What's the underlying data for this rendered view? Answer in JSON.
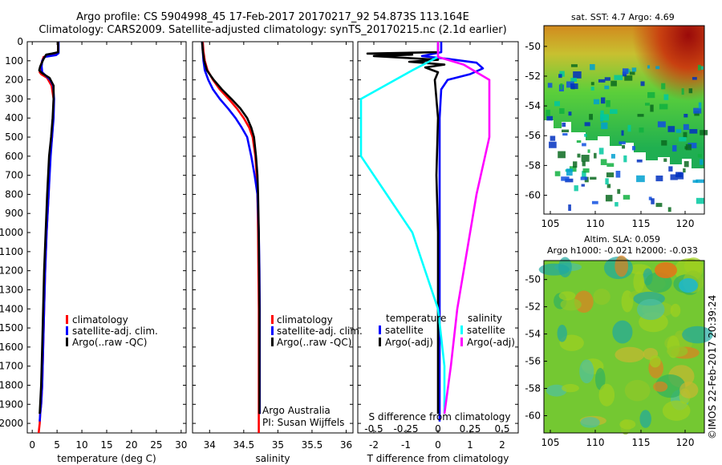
{
  "header": {
    "line1": "Argo profile: CS 5904998_45 17-Feb-2017 20170217_92 54.873S 113.164E",
    "line2": "Climatology: CARS2009. Satellite-adjusted climatology: synTS_20170215.nc (2.1d earlier)"
  },
  "colors": {
    "clim": "#ff0000",
    "sat": "#0000ff",
    "argo": "#000000",
    "sal_sat": "#00ffff",
    "sal_argo": "#ff00ff"
  },
  "chart_data": [
    {
      "type": "line",
      "id": "temperature",
      "xlabel": "temperature (deg C)",
      "xlim": [
        -1,
        31
      ],
      "ylim": [
        0,
        2050
      ],
      "xticks": [
        0,
        5,
        10,
        15,
        20,
        25,
        30
      ],
      "yticks": [
        0,
        100,
        200,
        300,
        400,
        500,
        600,
        700,
        800,
        900,
        1000,
        1100,
        1200,
        1300,
        1400,
        1500,
        1600,
        1700,
        1800,
        1900,
        2000
      ],
      "legend": [
        "climatology",
        "satellite-adj. clim.",
        "Argo(..raw -QC)"
      ],
      "series": [
        {
          "name": "climatology",
          "color": "#ff0000",
          "x": [
            5.2,
            5.2,
            5.0,
            4.0,
            2.3,
            2.0,
            1.6,
            1.5,
            1.8,
            3.0,
            3.9,
            4.3,
            4.2,
            4.0,
            3.6,
            3.3,
            2.9,
            2.6,
            2.4,
            2.2,
            2.0,
            1.8,
            1.6,
            1.5,
            1.3
          ],
          "y": [
            0,
            50,
            65,
            72,
            80,
            100,
            140,
            160,
            170,
            190,
            230,
            300,
            400,
            500,
            600,
            800,
            1000,
            1200,
            1400,
            1600,
            1800,
            1900,
            1950,
            2000,
            2050
          ]
        },
        {
          "name": "satellite-adj. clim.",
          "color": "#0000ff",
          "x": [
            5.3,
            5.3,
            4.8,
            2.5,
            2.0,
            1.9,
            2.0,
            2.8,
            3.6,
            4.2,
            4.4,
            4.3,
            4.0,
            3.7,
            3.3,
            2.9,
            2.6,
            2.4,
            2.2,
            2.0,
            1.8,
            1.6,
            1.5
          ],
          "y": [
            0,
            60,
            70,
            80,
            100,
            130,
            160,
            180,
            200,
            230,
            300,
            400,
            500,
            600,
            800,
            1000,
            1200,
            1400,
            1600,
            1800,
            1900,
            1950,
            1990
          ]
        },
        {
          "name": "Argo(..raw -QC)",
          "color": "#000000",
          "x": [
            5.2,
            5.2,
            4.0,
            2.8,
            2.3,
            1.6,
            1.4,
            2.0,
            3.5,
            4.3,
            4.3,
            4.1,
            3.8,
            3.4,
            3.0,
            2.7,
            2.4,
            2.2,
            2.0,
            1.8,
            1.6,
            1.5
          ],
          "y": [
            0,
            55,
            62,
            68,
            90,
            130,
            150,
            165,
            190,
            230,
            300,
            400,
            500,
            600,
            800,
            1000,
            1200,
            1400,
            1600,
            1800,
            1900,
            1950
          ]
        }
      ]
    },
    {
      "type": "line",
      "id": "salinity",
      "xlabel": "salinity",
      "xlim": [
        33.75,
        36.1
      ],
      "ylim": [
        0,
        2050
      ],
      "xticks": [
        34,
        34.5,
        35,
        35.5,
        36
      ],
      "legend": [
        "climatology",
        "satellite-adj. clim.",
        "Argo(..raw -QC)"
      ],
      "annotation": [
        "Argo Australia",
        "PI: Susan Wijffels"
      ],
      "series": [
        {
          "name": "climatology",
          "color": "#ff0000",
          "x": [
            33.9,
            33.91,
            33.93,
            33.97,
            34.05,
            34.15,
            34.28,
            34.4,
            34.5,
            34.58,
            34.63,
            34.67,
            34.69,
            34.7,
            34.71,
            34.715,
            34.72,
            34.72,
            34.72,
            34.72
          ],
          "y": [
            0,
            50,
            100,
            150,
            200,
            250,
            300,
            350,
            400,
            450,
            500,
            600,
            700,
            800,
            1000,
            1200,
            1400,
            1600,
            1800,
            2050
          ]
        },
        {
          "name": "satellite-adj. clim.",
          "color": "#0000ff",
          "x": [
            33.89,
            33.9,
            33.91,
            33.93,
            33.98,
            34.05,
            34.15,
            34.27,
            34.38,
            34.47,
            34.55,
            34.61,
            34.66,
            34.7,
            34.72,
            34.73,
            34.735,
            34.735,
            34.735
          ],
          "y": [
            0,
            50,
            100,
            150,
            200,
            250,
            300,
            350,
            400,
            450,
            500,
            600,
            700,
            800,
            1000,
            1200,
            1400,
            1600,
            1950
          ]
        },
        {
          "name": "Argo(..raw -QC)",
          "color": "#000000",
          "x": [
            33.89,
            33.9,
            33.92,
            33.96,
            34.06,
            34.18,
            34.32,
            34.45,
            34.55,
            34.61,
            34.65,
            34.68,
            34.7,
            34.71,
            34.72,
            34.725,
            34.73,
            34.73,
            34.73
          ],
          "y": [
            0,
            50,
            100,
            150,
            200,
            250,
            300,
            350,
            400,
            450,
            500,
            600,
            700,
            800,
            1000,
            1200,
            1400,
            1600,
            1950
          ]
        }
      ]
    },
    {
      "type": "line",
      "id": "difference",
      "xlabel": "T difference from climatology",
      "xlabel_top": "S difference from climatology",
      "xlim": [
        -2.5,
        2.5
      ],
      "ylim": [
        0,
        2050
      ],
      "xticks": [
        -2,
        -1,
        0,
        1,
        2
      ],
      "xticks_s": [
        "-0.5",
        "-0.25",
        "0",
        "0.25",
        "0.5"
      ],
      "legend_temperature_title": "temperature",
      "legend_salinity_title": "salinity",
      "legend_temperature": [
        "satellite",
        "Argo(-adj)"
      ],
      "legend_salinity": [
        "satellite",
        "Argo(-adj)"
      ],
      "series": [
        {
          "name": "T satellite",
          "color": "#0000ff",
          "x": [
            0.1,
            0.1,
            -0.2,
            -0.5,
            0.3,
            1.2,
            1.4,
            1.0,
            0.3,
            0.1,
            0.05,
            0.05,
            0.05,
            0.05,
            0.05,
            0.05
          ],
          "y": [
            0,
            55,
            65,
            75,
            90,
            110,
            140,
            170,
            200,
            250,
            400,
            700,
            1000,
            1300,
            1600,
            1990
          ]
        },
        {
          "name": "T Argo(-adj)",
          "color": "#000000",
          "x": [
            0.0,
            0.0,
            -2.2,
            -0.8,
            -2.0,
            -1.0,
            0.0,
            -0.9,
            0.2,
            -0.4,
            0.0,
            -0.1,
            0.0,
            -0.05,
            0.0,
            0.0,
            0.0
          ],
          "y": [
            0,
            55,
            62,
            68,
            75,
            85,
            95,
            105,
            120,
            135,
            160,
            200,
            400,
            700,
            1000,
            1500,
            1950
          ]
        },
        {
          "name": "S satellite",
          "color": "#00ffff",
          "x": [
            0.0,
            0.0,
            -0.2,
            -0.6,
            -0.6,
            -0.4,
            -0.2,
            -0.1,
            0.0,
            0.05,
            0.05
          ],
          "y": [
            0,
            80,
            150,
            300,
            600,
            800,
            1000,
            1200,
            1400,
            1700,
            1950
          ]
        },
        {
          "name": "S Argo(-adj)",
          "color": "#ff00ff",
          "x": [
            0.0,
            0.0,
            0.2,
            0.4,
            0.4,
            0.3,
            0.25,
            0.15,
            0.1,
            0.05
          ],
          "y": [
            0,
            80,
            120,
            200,
            500,
            800,
            1000,
            1400,
            1700,
            1950
          ]
        }
      ]
    }
  ],
  "maps": {
    "sst": {
      "title": "sat. SST: 4.7 Argo: 4.69",
      "xticks": [
        "105",
        "110",
        "115",
        "120"
      ],
      "yticks": [
        "-50",
        "-52",
        "-54",
        "-56",
        "-58",
        "-60"
      ]
    },
    "sla": {
      "title1": "Altim. SLA: 0.059",
      "title2": "Argo h1000: -0.021 h2000: -0.033",
      "xticks": [
        "105",
        "110",
        "115",
        "120"
      ],
      "yticks": [
        "-50",
        "-52",
        "-54",
        "-56",
        "-58",
        "-60"
      ]
    },
    "credit": "©IMOS 22-Feb-2017 20:39:24"
  }
}
